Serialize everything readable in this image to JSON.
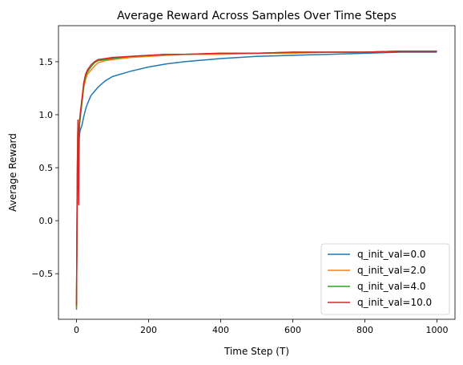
{
  "chart_data": {
    "type": "line",
    "title": "Average Reward Across Samples Over Time Steps",
    "xlabel": "Time Step (T)",
    "ylabel": "Average Reward",
    "xlim": [
      -50,
      1050
    ],
    "ylim": [
      -0.93,
      1.84
    ],
    "x_ticks": [
      0,
      200,
      400,
      600,
      800,
      1000
    ],
    "x_tick_labels": [
      "0",
      "200",
      "400",
      "600",
      "800",
      "1000"
    ],
    "y_ticks": [
      -0.5,
      0.0,
      0.5,
      1.0,
      1.5
    ],
    "y_tick_labels": [
      "−0.5",
      "0.0",
      "0.5",
      "1.0",
      "1.5"
    ],
    "grid": false,
    "legend_position": "lower-right",
    "x": [
      0,
      2,
      4,
      6,
      8,
      10,
      15,
      20,
      25,
      30,
      40,
      50,
      60,
      80,
      100,
      150,
      200,
      250,
      300,
      400,
      500,
      600,
      700,
      800,
      900,
      1000
    ],
    "series": [
      {
        "name": "q_init_val=0.0",
        "color": "#1f77b4",
        "values": [
          -0.8,
          0.3,
          0.9,
          0.75,
          0.8,
          0.85,
          0.9,
          0.98,
          1.05,
          1.1,
          1.18,
          1.22,
          1.26,
          1.32,
          1.36,
          1.41,
          1.45,
          1.48,
          1.5,
          1.53,
          1.55,
          1.56,
          1.57,
          1.58,
          1.59,
          1.59
        ]
      },
      {
        "name": "q_init_val=2.0",
        "color": "#ff7f0e",
        "values": [
          -0.82,
          0.5,
          0.9,
          0.7,
          0.95,
          0.98,
          1.1,
          1.25,
          1.33,
          1.38,
          1.42,
          1.46,
          1.49,
          1.51,
          1.52,
          1.54,
          1.55,
          1.56,
          1.57,
          1.57,
          1.58,
          1.58,
          1.59,
          1.59,
          1.6,
          1.6
        ]
      },
      {
        "name": "q_init_val=4.0",
        "color": "#2ca02c",
        "values": [
          -0.84,
          0.4,
          0.92,
          0.6,
          0.9,
          0.95,
          1.12,
          1.28,
          1.36,
          1.4,
          1.45,
          1.49,
          1.51,
          1.52,
          1.53,
          1.55,
          1.56,
          1.57,
          1.57,
          1.58,
          1.58,
          1.59,
          1.59,
          1.59,
          1.6,
          1.6
        ]
      },
      {
        "name": "q_init_val=10.0",
        "color": "#d62728",
        "values": [
          -0.8,
          0.2,
          0.95,
          0.15,
          0.9,
          1.0,
          1.15,
          1.3,
          1.38,
          1.42,
          1.47,
          1.5,
          1.52,
          1.53,
          1.54,
          1.55,
          1.56,
          1.57,
          1.57,
          1.58,
          1.58,
          1.59,
          1.59,
          1.59,
          1.6,
          1.6
        ]
      }
    ]
  }
}
